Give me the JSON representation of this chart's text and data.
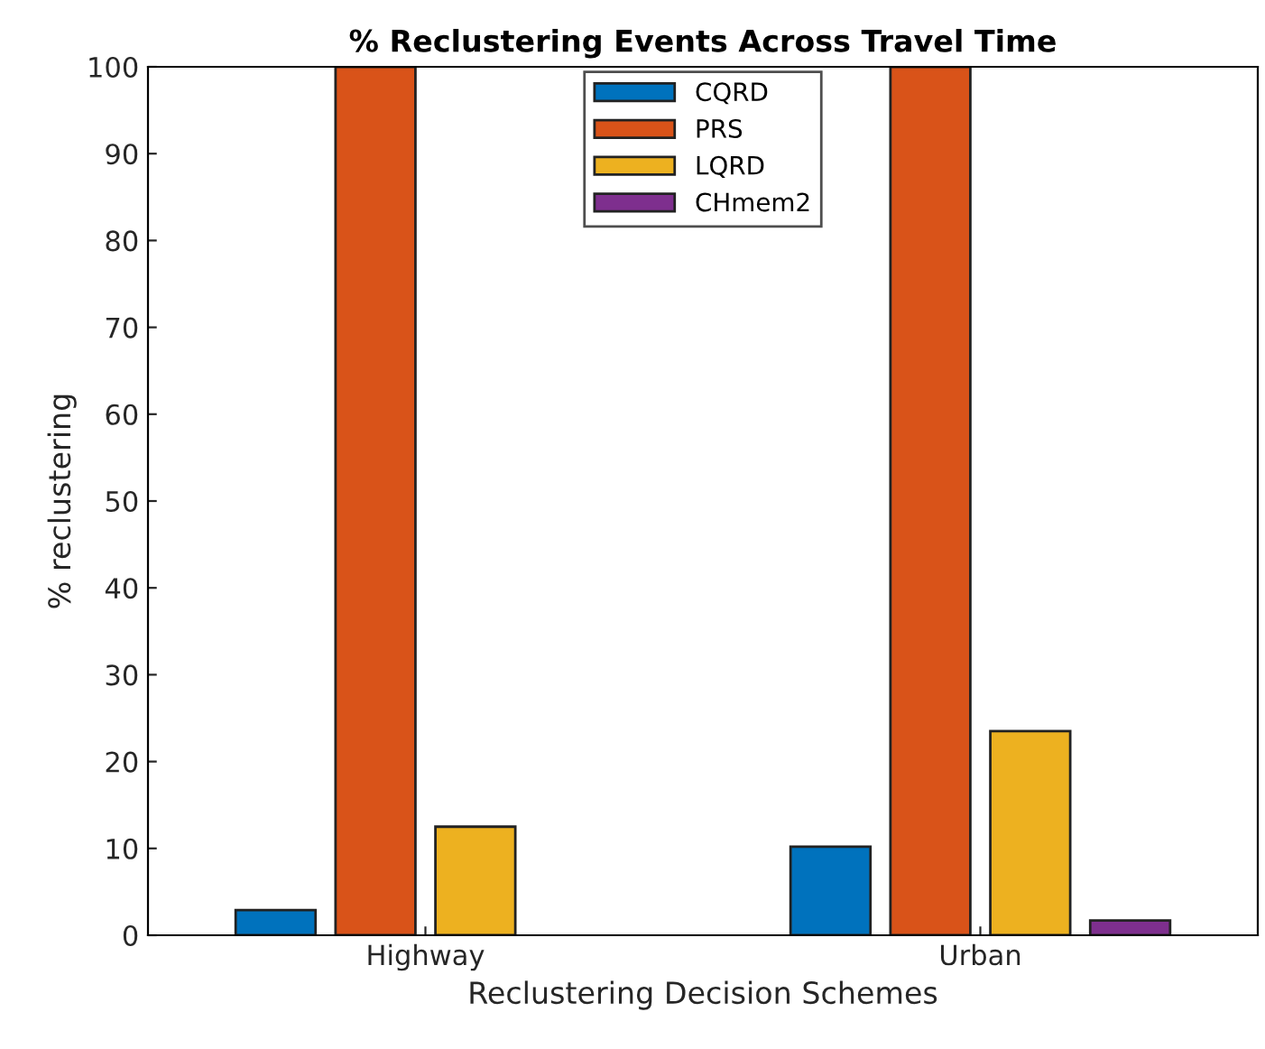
{
  "chart_data": {
    "type": "bar",
    "title": "% Reclustering Events Across Travel Time",
    "xlabel": "Reclustering Decision Schemes",
    "ylabel": "% reclustering",
    "categories": [
      "Highway",
      "Urban"
    ],
    "series": [
      {
        "name": "CQRD",
        "color": "#0072bd",
        "values": [
          2.9,
          10.2
        ]
      },
      {
        "name": "PRS",
        "color": "#d95319",
        "values": [
          100,
          100
        ]
      },
      {
        "name": "LQRD",
        "color": "#edb120",
        "values": [
          12.5,
          23.5
        ]
      },
      {
        "name": "CHmem2",
        "color": "#7e2f8e",
        "values": [
          null,
          1.7
        ]
      }
    ],
    "ylim": [
      0,
      100
    ],
    "yticks": [
      0,
      10,
      20,
      30,
      40,
      50,
      60,
      70,
      80,
      90,
      100
    ],
    "grid": false,
    "legend": "top"
  }
}
